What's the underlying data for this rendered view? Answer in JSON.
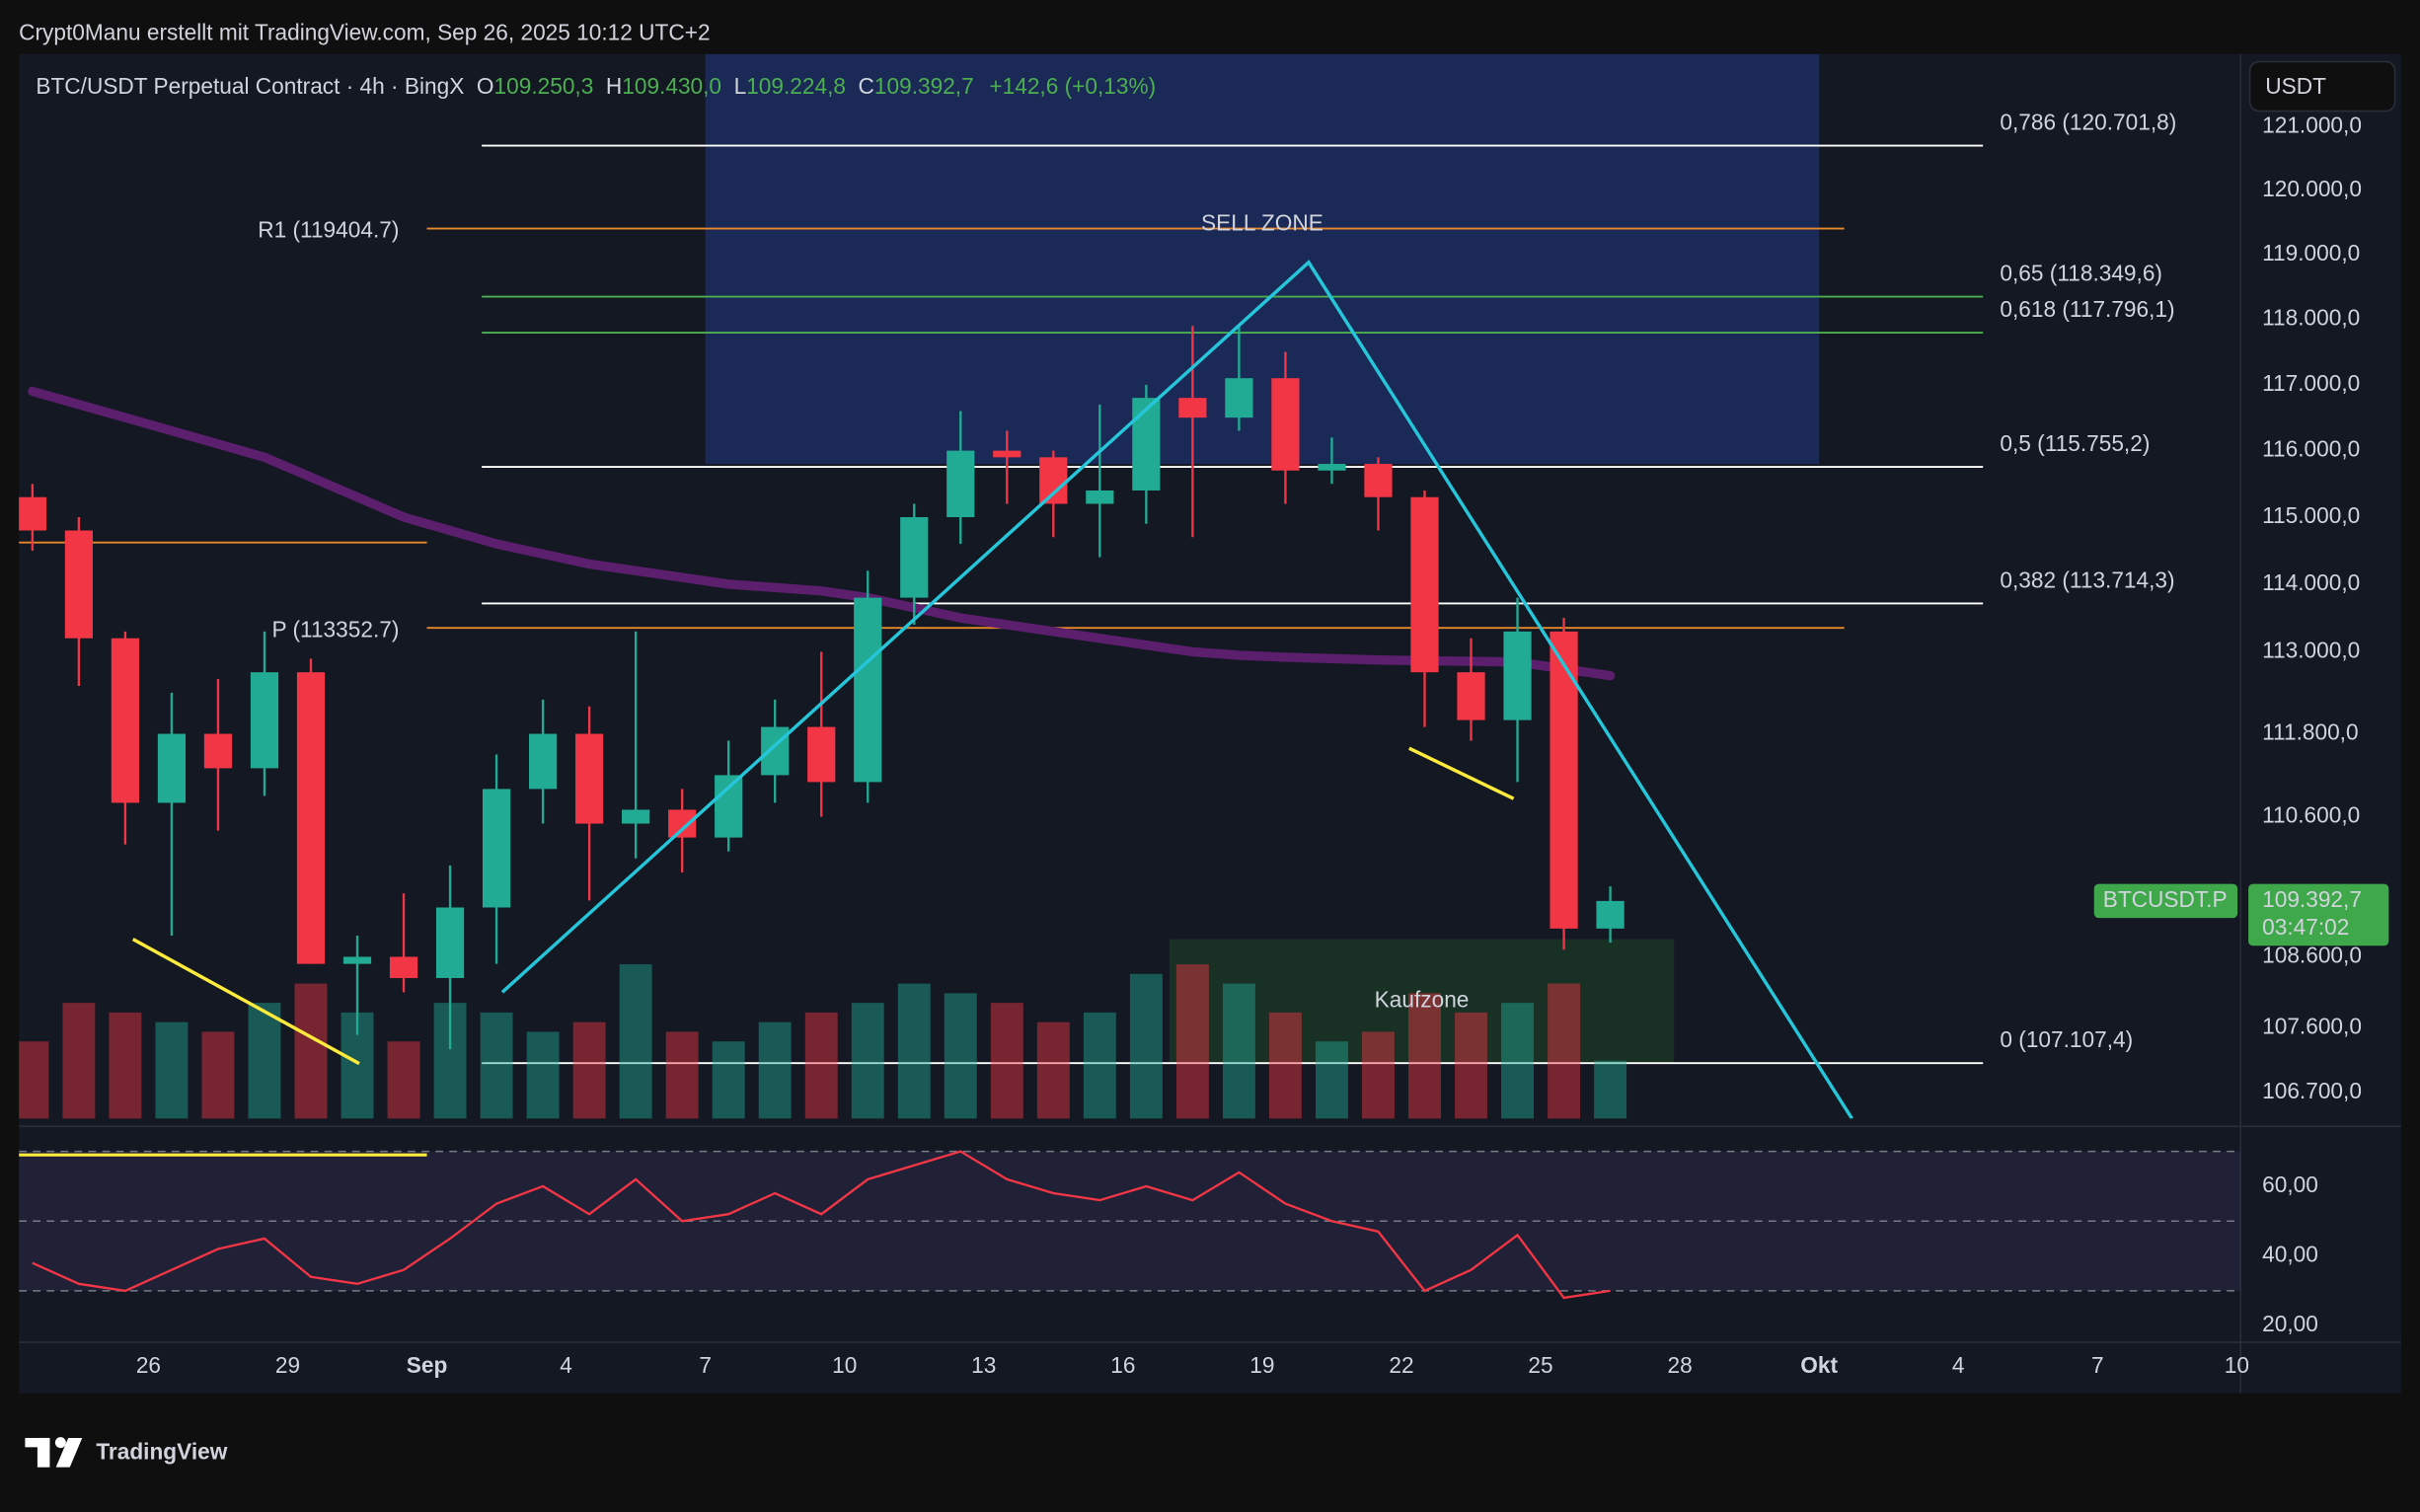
{
  "header": {
    "credit": "Crypt0Manu erstellt mit TradingView.com, Sep 26, 2025 10:12 UTC+2"
  },
  "footer": {
    "brand": "TradingView"
  },
  "chart_data": {
    "type": "candlestick",
    "title": "BTC/USDT Perpetual Contract · 4h · BingX",
    "legend_items": [
      {
        "key": "O",
        "value": "109.250,3"
      },
      {
        "key": "H",
        "value": "109.430,0"
      },
      {
        "key": "L",
        "value": "109.224,8"
      },
      {
        "key": "C",
        "value": "109.392,7"
      }
    ],
    "change": "+142,6 (+0,13%)",
    "currency": "USDT",
    "x": [
      "2025-08-23",
      "2025-08-24",
      "2025-08-25",
      "2025-08-26",
      "2025-08-27",
      "2025-08-28",
      "2025-08-29",
      "2025-08-30",
      "2025-08-31",
      "2025-09-01",
      "2025-09-02",
      "2025-09-03",
      "2025-09-04",
      "2025-09-05",
      "2025-09-06",
      "2025-09-07",
      "2025-09-08",
      "2025-09-09",
      "2025-09-10",
      "2025-09-11",
      "2025-09-12",
      "2025-09-13",
      "2025-09-14",
      "2025-09-15",
      "2025-09-16",
      "2025-09-17",
      "2025-09-18",
      "2025-09-19",
      "2025-09-20",
      "2025-09-21",
      "2025-09-22",
      "2025-09-23",
      "2025-09-24",
      "2025-09-25",
      "2025-09-26"
    ],
    "open": [
      115300,
      114800,
      113200,
      110800,
      111800,
      111300,
      112700,
      108500,
      108600,
      108300,
      109300,
      111000,
      111800,
      110500,
      110700,
      110300,
      111200,
      111900,
      111100,
      113800,
      115000,
      116000,
      115900,
      115200,
      115400,
      116800,
      116500,
      117100,
      115700,
      115800,
      115300,
      112700,
      112000,
      113300,
      109000
    ],
    "high": [
      115500,
      115000,
      113300,
      112400,
      112600,
      113300,
      112900,
      108900,
      109500,
      109900,
      111500,
      112300,
      112200,
      113300,
      111000,
      111700,
      112300,
      113000,
      114200,
      115200,
      116600,
      116300,
      116000,
      116700,
      117000,
      117900,
      117900,
      117500,
      116200,
      115900,
      115400,
      113200,
      113800,
      113500,
      109600
    ],
    "low": [
      114500,
      112500,
      110200,
      108900,
      110400,
      110900,
      108500,
      107500,
      108100,
      107300,
      108500,
      110500,
      109400,
      110000,
      109800,
      110100,
      110800,
      110600,
      110800,
      113400,
      114600,
      115200,
      114700,
      114400,
      114900,
      114700,
      116300,
      115200,
      115500,
      114800,
      111900,
      111700,
      111100,
      108700,
      108800
    ],
    "close": [
      114800,
      113200,
      110800,
      111800,
      111300,
      112700,
      108500,
      108600,
      108300,
      109300,
      111000,
      111800,
      110500,
      110700,
      110300,
      111200,
      111900,
      111100,
      113800,
      115000,
      116000,
      115900,
      115200,
      115400,
      116800,
      116500,
      117100,
      115700,
      115800,
      115300,
      112700,
      112000,
      113300,
      109000,
      109392.7
    ],
    "volume": [
      40,
      60,
      55,
      50,
      45,
      60,
      70,
      55,
      40,
      60,
      55,
      45,
      50,
      80,
      45,
      40,
      50,
      55,
      60,
      70,
      65,
      60,
      50,
      55,
      75,
      80,
      70,
      55,
      40,
      45,
      65,
      55,
      60,
      70,
      30
    ],
    "up_color": "#22ab94",
    "down_color": "#f23645",
    "log_scale": true,
    "grid": false,
    "xlim": [
      "2025-08-23T05:00",
      "2025-10-10T02:00"
    ],
    "xticks": [
      {
        "value": "2025-08-26",
        "label": "26"
      },
      {
        "value": "2025-08-29",
        "label": "29"
      },
      {
        "value": "2025-09-01",
        "label": "Sep"
      },
      {
        "value": "2025-09-04",
        "label": "4"
      },
      {
        "value": "2025-09-07",
        "label": "7"
      },
      {
        "value": "2025-09-10",
        "label": "10"
      },
      {
        "value": "2025-09-13",
        "label": "13"
      },
      {
        "value": "2025-09-16",
        "label": "16"
      },
      {
        "value": "2025-09-19",
        "label": "19"
      },
      {
        "value": "2025-09-22",
        "label": "22"
      },
      {
        "value": "2025-09-25",
        "label": "25"
      },
      {
        "value": "2025-09-28",
        "label": "28"
      },
      {
        "value": "2025-10-01",
        "label": "Okt"
      },
      {
        "value": "2025-10-04",
        "label": "4"
      },
      {
        "value": "2025-10-07",
        "label": "7"
      },
      {
        "value": "2025-10-10",
        "label": "10"
      }
    ],
    "ylim": [
      106336,
      122150
    ],
    "yticks": [
      {
        "value": 121000,
        "label": "121.000,0"
      },
      {
        "value": 120000,
        "label": "120.000,0"
      },
      {
        "value": 119000,
        "label": "119.000,0"
      },
      {
        "value": 118000,
        "label": "118.000,0"
      },
      {
        "value": 117000,
        "label": "117.000,0"
      },
      {
        "value": 116000,
        "label": "116.000,0"
      },
      {
        "value": 115000,
        "label": "115.000,0"
      },
      {
        "value": 114000,
        "label": "114.000,0"
      },
      {
        "value": 113000,
        "label": "113.000,0"
      },
      {
        "value": 111800,
        "label": "111.800,0"
      },
      {
        "value": 110600,
        "label": "110.600,0"
      },
      {
        "value": 108600,
        "label": "108.600,0"
      },
      {
        "value": 107600,
        "label": "107.600,0"
      },
      {
        "value": 106700,
        "label": "106.700,0"
      }
    ],
    "moving_average": {
      "color": "#5b1f6e",
      "values": [
        116900,
        116700,
        116500,
        116300,
        116100,
        115900,
        115600,
        115300,
        115000,
        114800,
        114600,
        114450,
        114300,
        114200,
        114100,
        114000,
        113950,
        113900,
        113800,
        113650,
        113500,
        113400,
        113300,
        113200,
        113100,
        113000,
        112950,
        112920,
        112900,
        112880,
        112870,
        112860,
        112850,
        112750,
        112650
      ]
    },
    "fib_levels": [
      {
        "value": 120701.8,
        "label": "0,786 (120.701,8)",
        "color": "#ffffff"
      },
      {
        "value": 118349.6,
        "label": "0,65 (118.349,6)",
        "color": "#4caf50"
      },
      {
        "value": 117796.1,
        "label": "0,618 (117.796,1)",
        "color": "#4caf50"
      },
      {
        "value": 115755.2,
        "label": "0,5 (115.755,2)",
        "color": "#ffffff"
      },
      {
        "value": 113714.3,
        "label": "0,382 (113.714,3)",
        "color": "#ffffff"
      },
      {
        "value": 107107.4,
        "label": "0 (107.107,4)",
        "color": "#ffffff"
      }
    ],
    "pivot_color": "#e8882a",
    "pivots": [
      {
        "value": 119404.7,
        "label": "R1 (119404.7)",
        "from": "2025-09-01",
        "to": "2025-10-01T13:00"
      },
      {
        "value": 113352.7,
        "label": "P (113352.7)",
        "from": "2025-09-01",
        "to": "2025-10-01T13:00"
      },
      {
        "value": 114620,
        "label": null,
        "from": "2025-08-23T05:00",
        "to": "2025-09-01"
      }
    ],
    "zones": [
      {
        "label": "SELL ZONE",
        "from": "2025-09-07",
        "to": "2025-10-01",
        "low": 115800,
        "high": 122150,
        "color": "#1c2b5c",
        "text_color": "#3d6fe0"
      },
      {
        "label": "Kaufzone",
        "from": "2025-09-17",
        "to": "2025-09-27T21:00",
        "low": 107100,
        "high": 108850,
        "color": "#1a3426",
        "text_color": "#4caf50"
      }
    ],
    "trendlines": [
      {
        "color": "#26c6da",
        "points": [
          [
            "2025-09-02T15:00",
            108100
          ],
          [
            "2025-09-20T00:00",
            118880
          ],
          [
            "2025-10-01T17:00",
            106336
          ]
        ]
      },
      {
        "color": "#ffeb3b",
        "points": [
          [
            "2025-08-25T16:00",
            108850
          ],
          [
            "2025-08-30T13:00",
            107100
          ]
        ]
      },
      {
        "color": "#ffeb3b",
        "points": [
          [
            "2025-09-22T04:00",
            111590
          ],
          [
            "2025-09-24T10:00",
            110860
          ]
        ]
      }
    ],
    "last_price": {
      "value": 109392.7,
      "label": "109.392,7",
      "symbol": "BTCUSDT.P",
      "countdown": "03:47:02",
      "color": "#3fa84a"
    },
    "rsi": {
      "color": "#f23645",
      "values": [
        38,
        32,
        30,
        36,
        42,
        45,
        34,
        32,
        36,
        45,
        55,
        60,
        52,
        62,
        50,
        52,
        58,
        52,
        62,
        66,
        70,
        62,
        58,
        56,
        60,
        56,
        64,
        55,
        50,
        47,
        30,
        36,
        46,
        28,
        30
      ],
      "ylim": [
        17,
        75
      ],
      "yticks": [
        {
          "value": 60,
          "label": "60,00"
        },
        {
          "value": 40,
          "label": "40,00"
        },
        {
          "value": 20,
          "label": "20,00"
        }
      ],
      "bands": [
        30,
        50,
        70
      ],
      "line": {
        "value": 69,
        "from": "2025-08-23T05:00",
        "to": "2025-09-01",
        "color": "#ffeb3b"
      }
    }
  }
}
